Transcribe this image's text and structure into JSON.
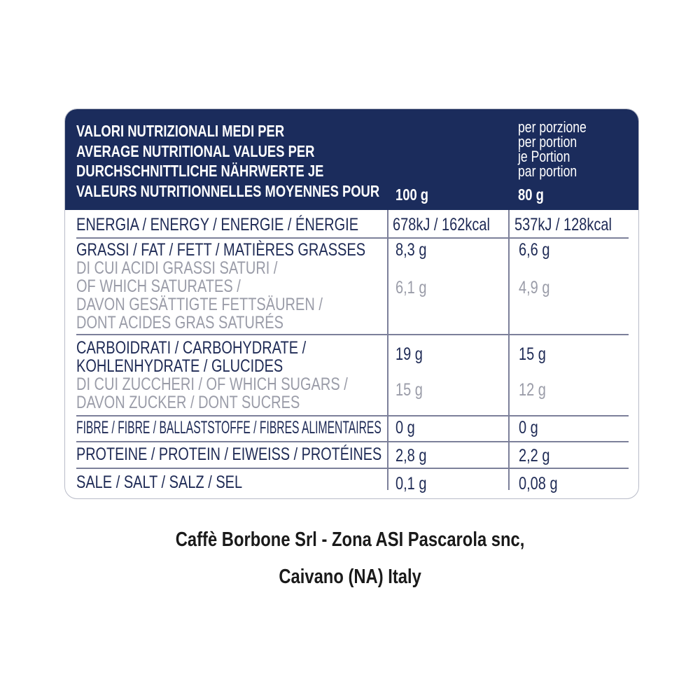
{
  "header": {
    "title_lines": [
      "VALORI NUTRIZIONALI MEDI PER",
      "AVERAGE NUTRITIONAL VALUES PER",
      "DURCHSCHNITTLICHE NÄHRWERTE JE",
      "VALEURS NUTRITIONNELLES MOYENNES POUR"
    ],
    "col1": "100 g",
    "portion_lines": [
      "per porzione",
      "per portion",
      "je Portion",
      "par portion"
    ],
    "col2": "80 g"
  },
  "rows": {
    "energy": {
      "label": "ENERGIA / ENERGY / ENERGIE / ÉNERGIE",
      "v100": "678kJ / 162kcal",
      "vportion": "537kJ / 128kcal"
    },
    "fat": {
      "label": "GRASSI / FAT / FETT / MATIÈRES GRASSES",
      "v100": "8,3 g",
      "vportion": "6,6 g"
    },
    "saturates": {
      "label_lines": [
        "DI CUI ACIDI GRASSI SATURI /",
        "OF WHICH SATURATES /",
        "DAVON GESÄTTIGTE FETTSÄUREN /",
        "DONT ACIDES GRAS SATURÉS"
      ],
      "v100": "6,1 g",
      "vportion": "4,9 g"
    },
    "carbs": {
      "label_lines": [
        "CARBOIDRATI / CARBOHYDRATE /",
        "KOHLENHYDRATE / GLUCIDES"
      ],
      "v100": "19 g",
      "vportion": "15 g"
    },
    "sugars": {
      "label_lines": [
        "DI CUI ZUCCHERI / OF WHICH SUGARS /",
        "DAVON ZUCKER / DONT SUCRES"
      ],
      "v100": "15 g",
      "vportion": "12 g"
    },
    "fibre": {
      "label": "FIBRE / FIBRE / BALLASTSTOFFE / FIBRES ALIMENTAIRES",
      "v100": "0 g",
      "vportion": "0 g"
    },
    "protein": {
      "label": "PROTEINE / PROTEIN / EIWEISS / PROTÉINES",
      "v100": "2,8 g",
      "vportion": "2,2 g"
    },
    "salt": {
      "label": "SALE / SALT / SALZ / SEL",
      "v100": "0,1 g",
      "vportion": "0,08 g"
    }
  },
  "footer": {
    "line1": "Caffè Borbone Srl - Zona ASI Pascarola snc,",
    "line2": "Caivano (NA) Italy"
  },
  "colors": {
    "header_bg": "#1b2c5c",
    "text": "#1e2a55",
    "sub_text": "#9a9ca8"
  }
}
